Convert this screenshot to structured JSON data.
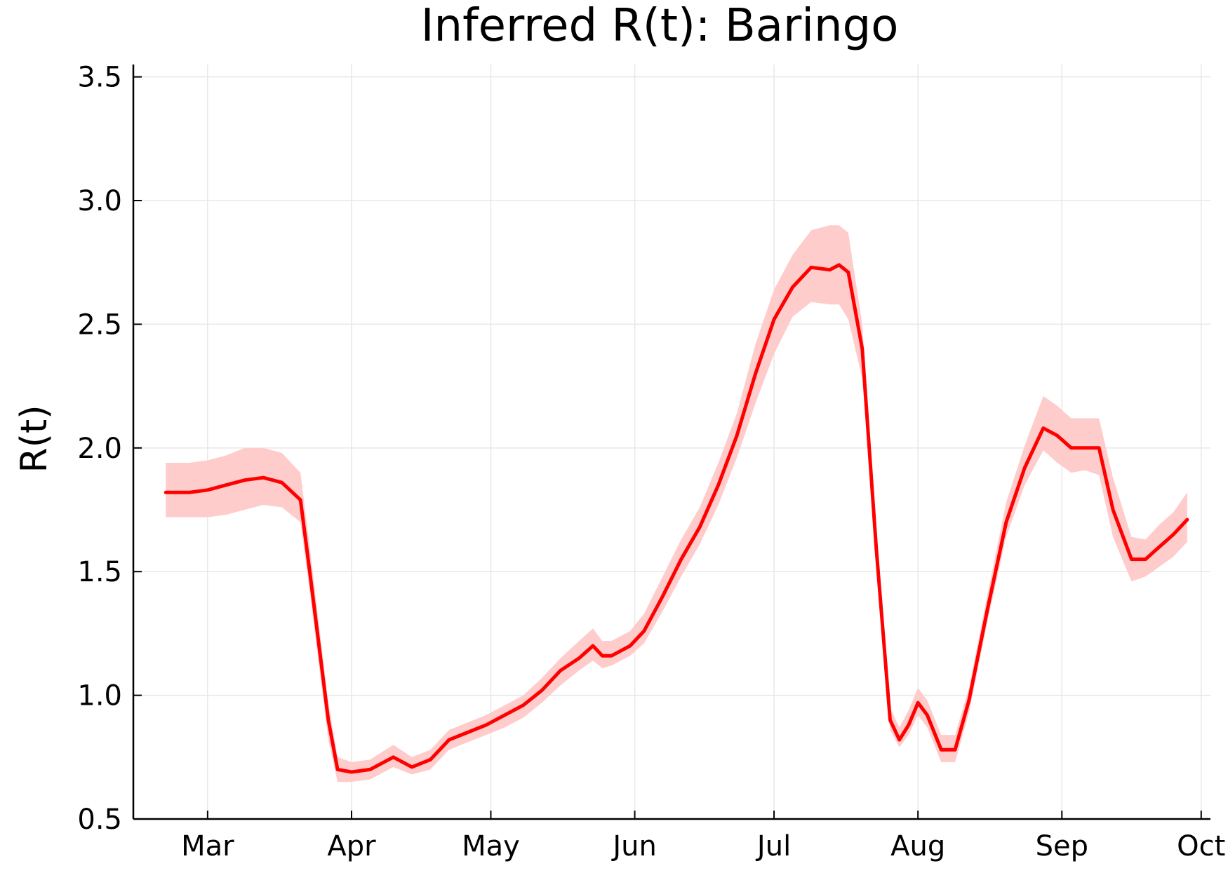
{
  "chart_data": {
    "type": "line",
    "title": "Inferred R(t): Baringo",
    "xlabel": "",
    "ylabel": "R(t)",
    "ylim": [
      0.5,
      3.55
    ],
    "xlim": [
      "2020-02-14",
      "2020-10-03"
    ],
    "grid": true,
    "legend": "none",
    "y_ticks": [
      "0.5",
      "1.0",
      "1.5",
      "2.0",
      "2.5",
      "3.0",
      "3.5"
    ],
    "x_ticks": [
      {
        "label": "Mar",
        "date": "2020-03-01"
      },
      {
        "label": "Apr",
        "date": "2020-04-01"
      },
      {
        "label": "May",
        "date": "2020-05-01"
      },
      {
        "label": "Jun",
        "date": "2020-06-01"
      },
      {
        "label": "Jul",
        "date": "2020-07-01"
      },
      {
        "label": "Aug",
        "date": "2020-08-01"
      },
      {
        "label": "Sep",
        "date": "2020-09-01"
      },
      {
        "label": "Oct",
        "date": "2020-10-01"
      }
    ],
    "colors": {
      "line": "#ff0000",
      "band": "#ffcccc",
      "grid": "#e8e8e8",
      "axis": "#000000"
    },
    "series": [
      {
        "x": [
          "2020-02-21",
          "2020-02-26",
          "2020-03-01",
          "2020-03-05",
          "2020-03-09",
          "2020-03-13",
          "2020-03-17",
          "2020-03-21",
          "2020-03-23",
          "2020-03-27",
          "2020-03-29",
          "2020-04-01",
          "2020-04-05",
          "2020-04-10",
          "2020-04-14",
          "2020-04-18",
          "2020-04-22",
          "2020-04-26",
          "2020-04-30",
          "2020-05-04",
          "2020-05-08",
          "2020-05-12",
          "2020-05-16",
          "2020-05-20",
          "2020-05-23",
          "2020-05-25",
          "2020-05-27",
          "2020-05-31",
          "2020-06-03",
          "2020-06-07",
          "2020-06-11",
          "2020-06-15",
          "2020-06-19",
          "2020-06-23",
          "2020-06-27",
          "2020-07-01",
          "2020-07-05",
          "2020-07-09",
          "2020-07-13",
          "2020-07-15",
          "2020-07-17",
          "2020-07-20",
          "2020-07-23",
          "2020-07-26",
          "2020-07-28",
          "2020-07-30",
          "2020-08-01",
          "2020-08-03",
          "2020-08-06",
          "2020-08-09",
          "2020-08-12",
          "2020-08-16",
          "2020-08-20",
          "2020-08-24",
          "2020-08-28",
          "2020-08-31",
          "2020-09-03",
          "2020-09-06",
          "2020-09-09",
          "2020-09-12",
          "2020-09-16",
          "2020-09-19",
          "2020-09-22",
          "2020-09-25",
          "2020-09-28"
        ],
        "y": [
          1.82,
          1.82,
          1.83,
          1.85,
          1.87,
          1.88,
          1.86,
          1.79,
          1.5,
          0.9,
          0.7,
          0.69,
          0.7,
          0.75,
          0.71,
          0.74,
          0.82,
          0.85,
          0.88,
          0.92,
          0.96,
          1.02,
          1.1,
          1.15,
          1.2,
          1.16,
          1.16,
          1.2,
          1.26,
          1.4,
          1.55,
          1.68,
          1.85,
          2.05,
          2.3,
          2.52,
          2.65,
          2.73,
          2.72,
          2.74,
          2.71,
          2.4,
          1.6,
          0.9,
          0.82,
          0.88,
          0.97,
          0.92,
          0.78,
          0.78,
          0.98,
          1.35,
          1.7,
          1.92,
          2.08,
          2.05,
          2.0,
          2.0,
          2.0,
          1.75,
          1.55,
          1.55,
          1.6,
          1.65,
          1.71
        ],
        "lower": [
          1.72,
          1.72,
          1.72,
          1.73,
          1.75,
          1.77,
          1.76,
          1.7,
          1.42,
          0.82,
          0.65,
          0.65,
          0.66,
          0.71,
          0.68,
          0.7,
          0.78,
          0.81,
          0.84,
          0.87,
          0.91,
          0.97,
          1.04,
          1.1,
          1.14,
          1.11,
          1.12,
          1.16,
          1.21,
          1.34,
          1.48,
          1.61,
          1.77,
          1.96,
          2.18,
          2.38,
          2.53,
          2.59,
          2.58,
          2.58,
          2.52,
          2.28,
          1.56,
          0.86,
          0.79,
          0.84,
          0.92,
          0.87,
          0.73,
          0.73,
          0.93,
          1.3,
          1.64,
          1.85,
          1.99,
          1.94,
          1.9,
          1.91,
          1.89,
          1.64,
          1.46,
          1.48,
          1.52,
          1.56,
          1.62
        ],
        "upper": [
          1.94,
          1.94,
          1.95,
          1.97,
          2.0,
          2.0,
          1.98,
          1.9,
          1.6,
          0.97,
          0.75,
          0.73,
          0.74,
          0.8,
          0.75,
          0.78,
          0.86,
          0.89,
          0.92,
          0.96,
          1.0,
          1.07,
          1.15,
          1.22,
          1.27,
          1.22,
          1.22,
          1.26,
          1.33,
          1.48,
          1.63,
          1.76,
          1.94,
          2.14,
          2.42,
          2.64,
          2.78,
          2.88,
          2.9,
          2.9,
          2.87,
          2.5,
          1.66,
          0.95,
          0.87,
          0.94,
          1.03,
          0.98,
          0.84,
          0.84,
          1.03,
          1.41,
          1.78,
          2.01,
          2.21,
          2.17,
          2.12,
          2.12,
          2.12,
          1.88,
          1.64,
          1.63,
          1.69,
          1.74,
          1.82
        ]
      }
    ]
  }
}
